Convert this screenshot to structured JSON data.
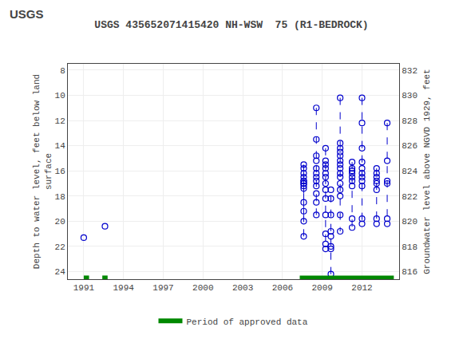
{
  "chart_data": {
    "type": "scatter",
    "title": "USGS 435652071415420 NH-WSW  75 (R1-BEDROCK)",
    "annotations": [
      {
        "text": "USGS"
      }
    ],
    "ylabel": "Depth to water level, feet below land\nsurface",
    "y2label": "Groundwater level above NGVD 1929, feet",
    "xlim": [
      1989.8,
      2014.8
    ],
    "xticks": [
      1991,
      1994,
      1997,
      2000,
      2003,
      2006,
      2009,
      2012
    ],
    "ylim": [
      24.6,
      7.5
    ],
    "yticks": [
      8,
      10,
      12,
      14,
      16,
      18,
      20,
      22,
      24
    ],
    "y2lim": [
      815.4,
      832.5
    ],
    "y2ticks": [
      816,
      818,
      820,
      822,
      824,
      826,
      828,
      830,
      832
    ],
    "grid": true,
    "legend": "bottom",
    "series": [
      {
        "type": "scatter",
        "color": "#0000cc",
        "marker": "open circle",
        "line_style": "dashed",
        "points": [
          {
            "x": 1991.0,
            "values": [
              21.3
            ]
          },
          {
            "x": 1992.6,
            "values": [
              20.4
            ]
          },
          {
            "x": 2007.6,
            "values": [
              21.2,
              16.8,
              17.0,
              17.2,
              17.4,
              15.8,
              16.2,
              15.5,
              16.5,
              16.8,
              17.0,
              18.5,
              19.2,
              20.0
            ]
          },
          {
            "x": 2008.55,
            "values": [
              11.0,
              13.5,
              14.8,
              15.2,
              15.8,
              16.2,
              16.5,
              16.8,
              17.2,
              17.8,
              18.5,
              19.5
            ]
          },
          {
            "x": 2009.25,
            "values": [
              14.2,
              15.2,
              15.5,
              15.8,
              16.2,
              16.5,
              17.0,
              17.5,
              18.2,
              19.5,
              21.0,
              21.8,
              22.2
            ]
          },
          {
            "x": 2009.65,
            "values": [
              24.2,
              22.2,
              22.0,
              20.8,
              21.2,
              19.5,
              18.2,
              17.5
            ]
          },
          {
            "x": 2010.35,
            "values": [
              10.2,
              13.8,
              14.2,
              14.5,
              14.8,
              15.2,
              15.5,
              15.8,
              16.2,
              16.5,
              17.0,
              17.5,
              18.0,
              19.5,
              20.8
            ]
          },
          {
            "x": 2011.25,
            "values": [
              15.3,
              15.8,
              16.0,
              16.2,
              16.5,
              16.8,
              17.2,
              19.8,
              20.5
            ]
          },
          {
            "x": 2012.0,
            "values": [
              10.2,
              12.2,
              14.2,
              15.3,
              15.8,
              16.2,
              16.5,
              16.8,
              17.2,
              19.8,
              20.2
            ]
          },
          {
            "x": 2013.1,
            "values": [
              15.8,
              16.2,
              16.5,
              16.8,
              17.0,
              17.5,
              19.8,
              20.2
            ]
          },
          {
            "x": 2013.9,
            "values": [
              12.2,
              15.2,
              16.8,
              17.0,
              19.8,
              20.2
            ]
          }
        ]
      },
      {
        "name": "Period of approved data",
        "type": "bar",
        "orientation": "horizontal",
        "color": "#008800",
        "line_style": "solid",
        "y": 24.5,
        "values": [
          [
            1991.0,
            1991.4
          ],
          [
            1992.4,
            1992.8
          ],
          [
            2007.3,
            2014.4
          ]
        ]
      }
    ]
  }
}
